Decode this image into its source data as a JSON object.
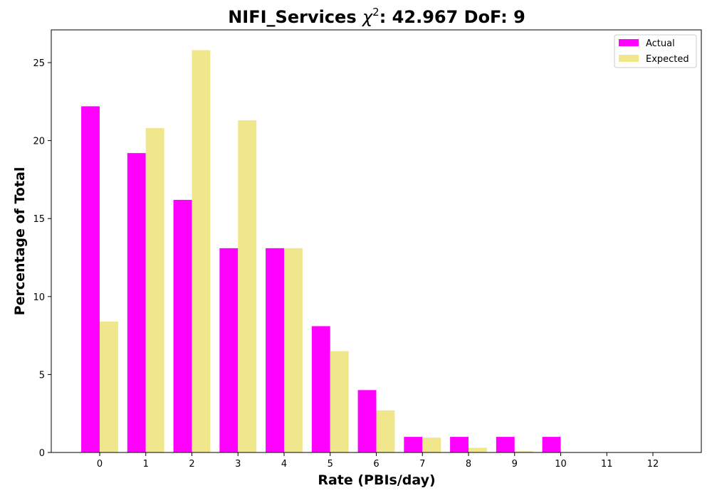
{
  "chart_data": {
    "type": "bar",
    "title_prefix": "NIFI_Services ",
    "title_chi_symbol": "χ",
    "title_chi_exponent": "2",
    "title_suffix": ": 42.967 DoF: 9",
    "xlabel": "Rate (PBIs/day)",
    "ylabel": "Percentage of Total",
    "categories": [
      "0",
      "1",
      "2",
      "3",
      "4",
      "5",
      "6",
      "7",
      "8",
      "9",
      "10",
      "11",
      "12"
    ],
    "y_ticks": [
      "0",
      "5",
      "10",
      "15",
      "20",
      "25"
    ],
    "xlim": [
      -1.05,
      13.05
    ],
    "ylim": [
      0,
      27.1
    ],
    "legend_position": "top-right",
    "grid": false,
    "series": [
      {
        "name": "Actual",
        "color": "#ff00ff",
        "values": [
          22.2,
          19.2,
          16.2,
          13.1,
          13.1,
          8.1,
          4.0,
          1.0,
          1.0,
          1.0,
          1.0,
          0,
          0
        ]
      },
      {
        "name": "Expected",
        "color": "#f0e68c",
        "values": [
          8.4,
          20.8,
          25.8,
          21.3,
          13.1,
          6.5,
          2.7,
          0.95,
          0.3,
          0.08,
          0.02,
          0,
          0
        ]
      }
    ]
  }
}
